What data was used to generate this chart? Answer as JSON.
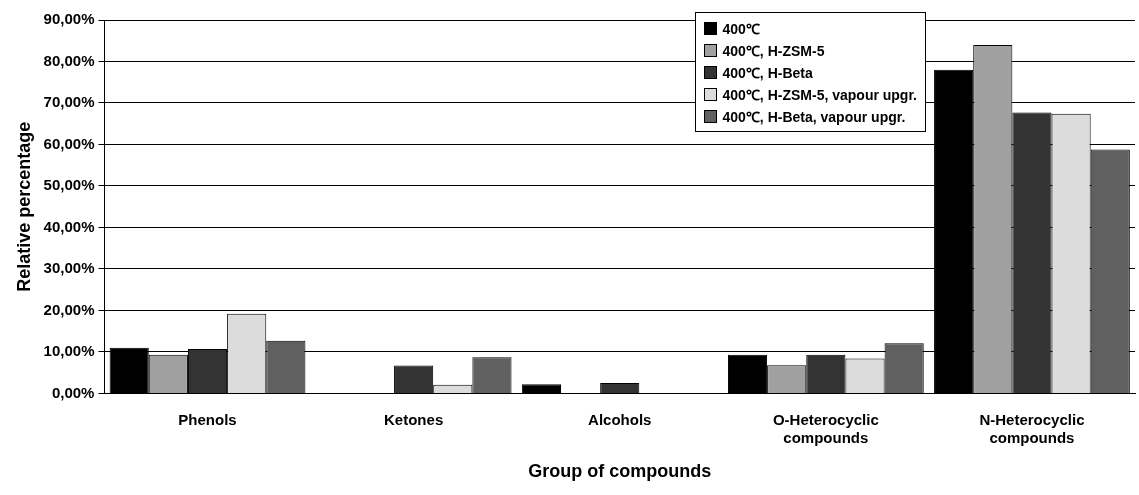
{
  "chart_data": {
    "type": "bar",
    "xlabel": "Group of compounds",
    "ylabel": "Relative percentage",
    "categories": [
      "Phenols",
      "Ketones",
      "Alcohols",
      "O-Heterocyclic compounds",
      "N-Heterocyclic compounds"
    ],
    "series": [
      {
        "name": "400℃",
        "color": "#000000",
        "values": [
          11.0,
          0,
          2.2,
          9.3,
          78.0
        ]
      },
      {
        "name": "400℃, H-ZSM-5",
        "color": "#a0a0a0",
        "values": [
          9.3,
          0,
          0,
          6.8,
          84.0
        ]
      },
      {
        "name": "400℃, H-Beta",
        "color": "#333333",
        "values": [
          10.7,
          6.7,
          2.5,
          9.3,
          67.7
        ]
      },
      {
        "name": "400℃, H-ZSM-5, vapour upgr.",
        "color": "#dcdcdc",
        "values": [
          19.2,
          2.1,
          0,
          8.4,
          67.4
        ]
      },
      {
        "name": "400℃, H-Beta, vapour upgr.",
        "color": "#606060",
        "values": [
          12.7,
          8.7,
          0,
          12.1,
          58.8
        ]
      }
    ],
    "ylim": [
      0,
      90
    ],
    "yticks": [
      {
        "value": 0,
        "label": "0,00%"
      },
      {
        "value": 10,
        "label": "10,00%"
      },
      {
        "value": 20,
        "label": "20,00%"
      },
      {
        "value": 30,
        "label": "30,00%"
      },
      {
        "value": 40,
        "label": "40,00%"
      },
      {
        "value": 50,
        "label": "50,00%"
      },
      {
        "value": 60,
        "label": "60,00%"
      },
      {
        "value": 70,
        "label": "70,00%"
      },
      {
        "value": 80,
        "label": "80,00%"
      },
      {
        "value": 90,
        "label": "90,00%"
      }
    ],
    "grid": "y",
    "legend": "top right"
  }
}
